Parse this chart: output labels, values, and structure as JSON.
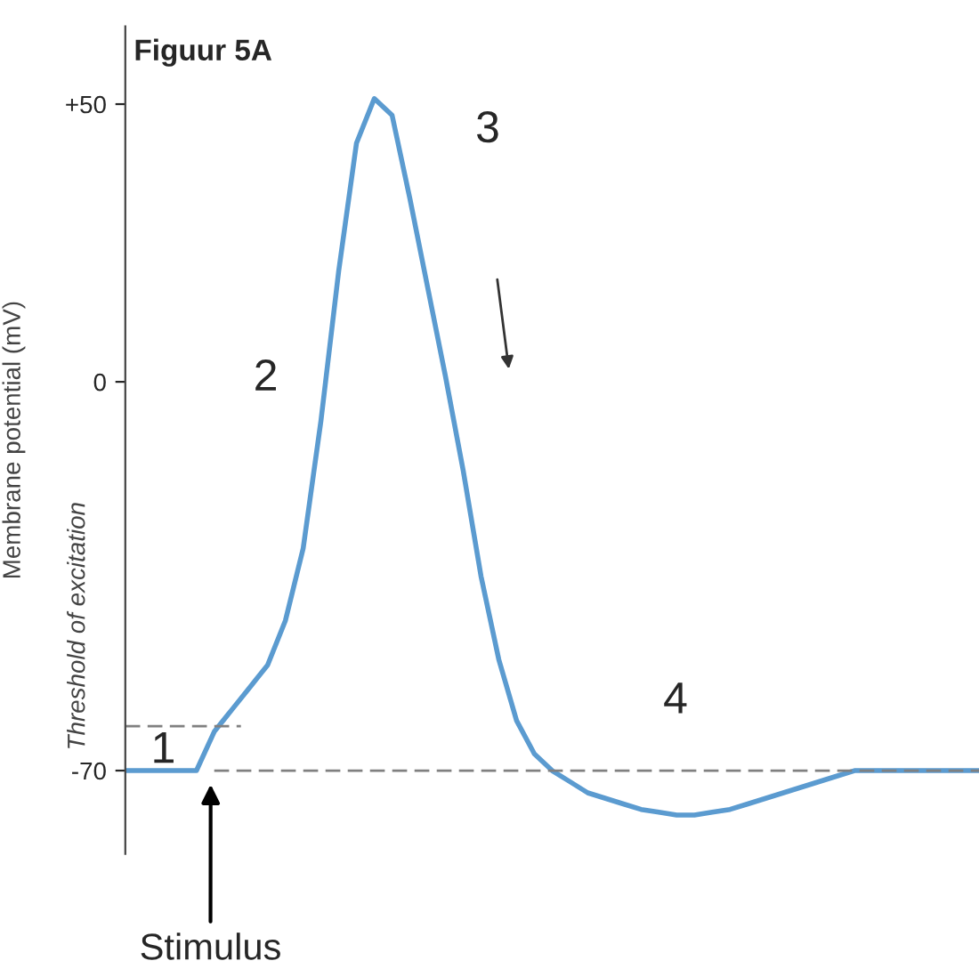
{
  "chart_data": {
    "type": "line",
    "title": "Figuur 5A",
    "ylabel": "Membrane potential (mV)",
    "categories": [
      null,
      null,
      null,
      null,
      null,
      null,
      null,
      null,
      null,
      null,
      null,
      null,
      null,
      null,
      null,
      null,
      null,
      null,
      null,
      null,
      null,
      null,
      null,
      null,
      null,
      null,
      null,
      null,
      null,
      null,
      null,
      null,
      null,
      null,
      null,
      null,
      null,
      null,
      null,
      null,
      null,
      null,
      null,
      null,
      null,
      null,
      null,
      null,
      null
    ],
    "series": [
      {
        "color": "#5b9bd0",
        "values": [
          -70,
          -70,
          -70,
          -70,
          -70,
          -63,
          -59,
          -55,
          -51,
          -43,
          -30,
          -7,
          20,
          43,
          51,
          48,
          33,
          17,
          1,
          -16,
          -35,
          -50,
          -61,
          -67,
          -70,
          -72,
          -74,
          -75,
          -76,
          -77,
          -77.5,
          -78,
          -78,
          -77.5,
          -77,
          -76,
          -75,
          -74,
          -73,
          -72,
          -71,
          -70,
          -70,
          -70,
          -70,
          -70,
          -70,
          -70,
          -70
        ]
      }
    ],
    "ylim": [
      -85,
      64
    ],
    "yticks": [
      {
        "value": 50,
        "label": "+50"
      },
      0,
      {
        "value": -70,
        "label": "-70"
      }
    ],
    "tick_labels": "y",
    "grid": false,
    "legend": false,
    "marker": "none",
    "line_style": "solid",
    "ref_lines": [
      {
        "axis": "y",
        "value": -70,
        "color": "#808080",
        "line_style": "dashed"
      },
      {
        "axis": "y",
        "value": -62,
        "label": "Threshold of excitation",
        "color": "#808080",
        "line_style": "dashed"
      }
    ],
    "annotations": [
      "1",
      "2",
      "3",
      "4",
      "Stimulus"
    ]
  }
}
